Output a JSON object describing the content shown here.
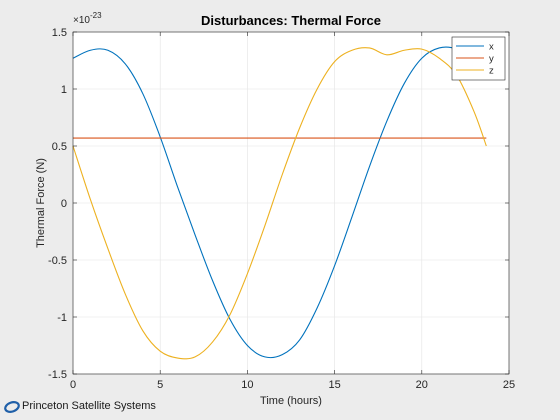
{
  "chart_data": {
    "type": "line",
    "title": "Disturbances: Thermal Force",
    "xlabel": "Time (hours)",
    "ylabel": "Thermal Force (N)",
    "y_exponent_label": "×10",
    "y_exponent_power": "-23",
    "xlim": [
      0,
      25
    ],
    "ylim": [
      -1.5,
      1.5
    ],
    "xticks": [
      "0",
      "5",
      "10",
      "15",
      "20",
      "25"
    ],
    "xtick_values": [
      0,
      5,
      10,
      15,
      20,
      25
    ],
    "yticks": [
      "1.5",
      "1",
      "0.5",
      "0",
      "-0.5",
      "-1",
      "-1.5"
    ],
    "ytick_values": [
      1.5,
      1,
      0.5,
      0,
      -0.5,
      -1,
      -1.5
    ],
    "grid": true,
    "legend_position": "top-right",
    "x": [
      0,
      1,
      2,
      3,
      4,
      5,
      6,
      7,
      8,
      9,
      10,
      11,
      12,
      13,
      14,
      15,
      16,
      17,
      18,
      19,
      20,
      21,
      22,
      23,
      23.7
    ],
    "series": [
      {
        "name": "x",
        "color": "#0072BD",
        "values": [
          1.27,
          1.34,
          1.34,
          1.22,
          0.96,
          0.58,
          0.14,
          -0.28,
          -0.68,
          -1.02,
          -1.25,
          -1.35,
          -1.33,
          -1.2,
          -0.92,
          -0.55,
          -0.12,
          0.32,
          0.72,
          1.05,
          1.27,
          1.36,
          1.35,
          1.25,
          1.1
        ]
      },
      {
        "name": "y",
        "color": "#D95319",
        "values": [
          0.57,
          0.57,
          0.57,
          0.57,
          0.57,
          0.57,
          0.57,
          0.57,
          0.57,
          0.57,
          0.57,
          0.57,
          0.57,
          0.57,
          0.57,
          0.57,
          0.57,
          0.57,
          0.57,
          0.57,
          0.57,
          0.57,
          0.57,
          0.57,
          0.57
        ]
      },
      {
        "name": "z",
        "color": "#EDB120",
        "values": [
          0.5,
          0.03,
          -0.4,
          -0.8,
          -1.12,
          -1.3,
          -1.36,
          -1.35,
          -1.22,
          -0.98,
          -0.62,
          -0.2,
          0.25,
          0.66,
          1.0,
          1.24,
          1.34,
          1.36,
          1.3,
          1.34,
          1.35,
          1.27,
          1.12,
          0.8,
          0.5
        ]
      }
    ]
  },
  "logo": {
    "text": "Princeton Satellite Systems",
    "color": "#1f5fa8"
  }
}
